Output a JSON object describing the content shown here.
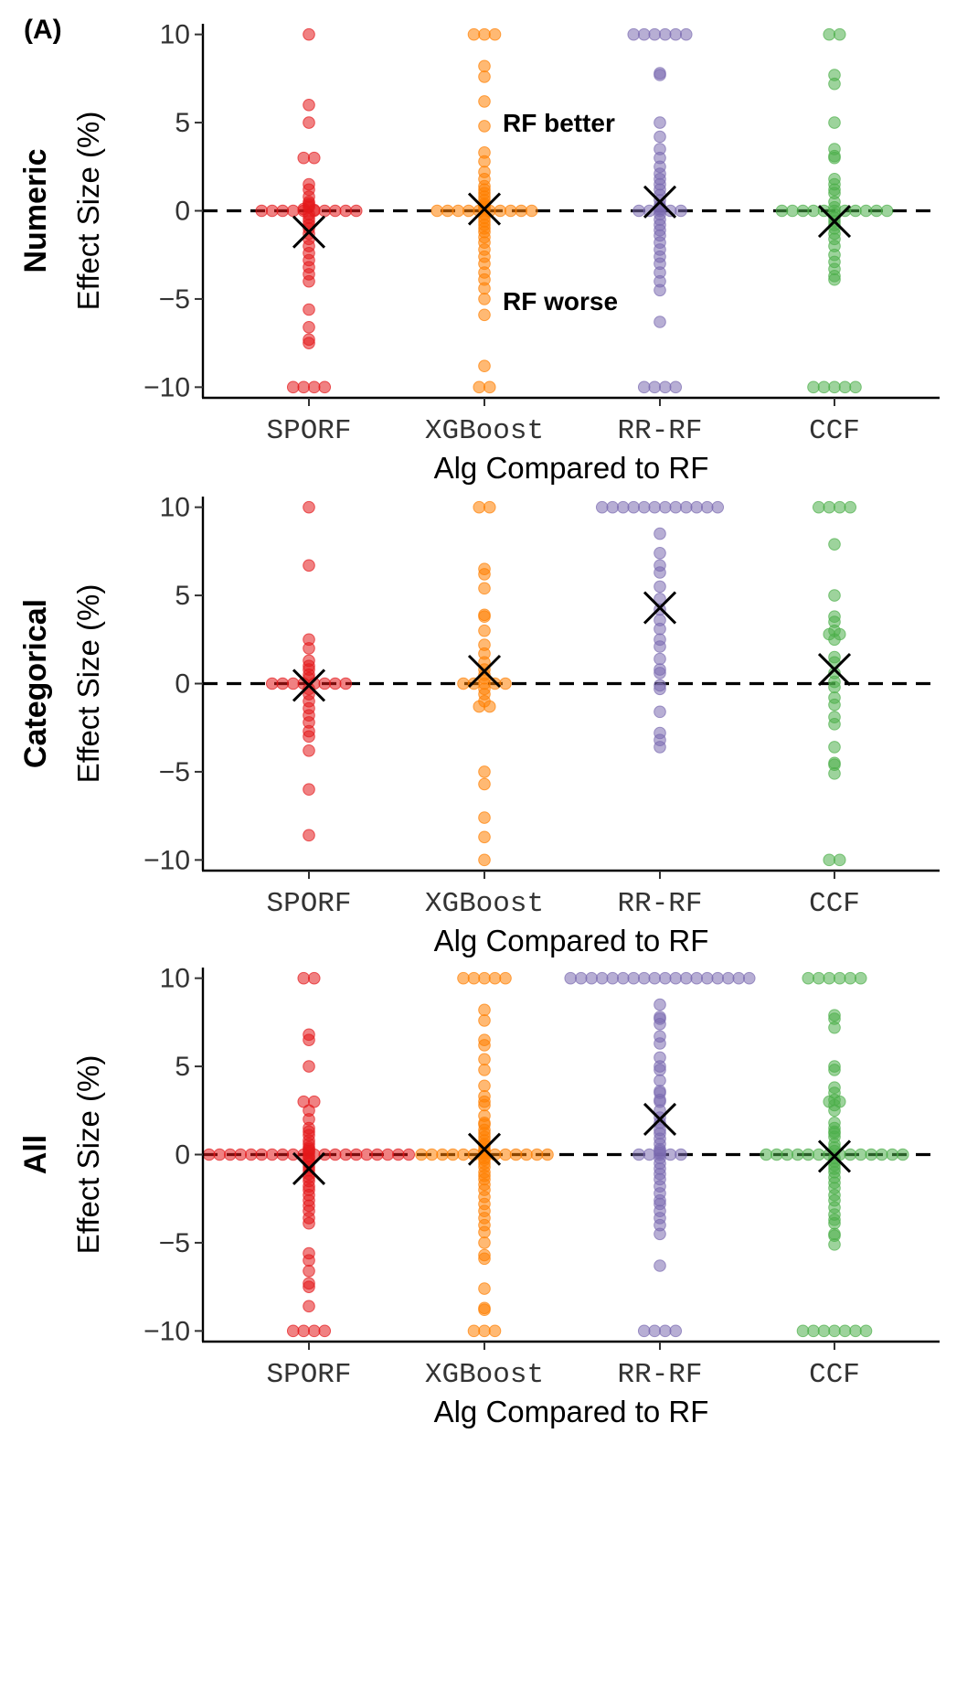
{
  "panel_label": "(A)",
  "colors": {
    "SPORF": "#e41a1c",
    "XGBoost": "#ff7f00",
    "RR-RF": "#7b6bb0",
    "CCF": "#4daf4a",
    "mean_marker": "#000000",
    "reference_line": "#000000"
  },
  "chart_data": [
    {
      "type": "scatter",
      "row_label": "Numeric",
      "ylabel": "Effect Size (%)",
      "xlabel": "Alg Compared to RF",
      "categories": [
        "SPORF",
        "XGBoost",
        "RR-RF",
        "CCF"
      ],
      "ylim": [
        -10.5,
        10.5
      ],
      "yticks": [
        10,
        5,
        0,
        -5,
        -10
      ],
      "ytick_labels": [
        "10",
        "5",
        "0",
        "−5",
        "−10"
      ],
      "reference_line_y": 0,
      "annotations": [
        "RF better",
        "RF worse"
      ],
      "series": [
        {
          "category": "SPORF",
          "mean": -1.2,
          "values": [
            10,
            6,
            5,
            3,
            3,
            1.5,
            1.2,
            0.8,
            0.5,
            0.4,
            0.3,
            0.2,
            0.1,
            0.05,
            0,
            0,
            0,
            0,
            0,
            0,
            0,
            0,
            0,
            0,
            -0.2,
            -0.4,
            -0.6,
            -0.8,
            -1,
            -1.3,
            -1.6,
            -2,
            -2.4,
            -2.8,
            -3.2,
            -3.6,
            -4,
            -5.6,
            -6.6,
            -7.3,
            -7.5,
            -10,
            -10,
            -10,
            -10
          ]
        },
        {
          "category": "XGBoost",
          "mean": 0.1,
          "values": [
            10,
            10,
            10,
            8.2,
            7.6,
            6.2,
            4.8,
            3.3,
            2.8,
            2.2,
            1.8,
            1.4,
            1.2,
            1,
            0.8,
            0.6,
            0.4,
            0.3,
            0.2,
            0.1,
            0,
            0,
            0,
            0,
            0,
            0,
            0,
            0,
            0,
            0,
            -0.2,
            -0.4,
            -0.6,
            -0.8,
            -1,
            -1.2,
            -1.5,
            -1.8,
            -2.2,
            -2.6,
            -3,
            -3.5,
            -3.9,
            -4.4,
            -5,
            -5.9,
            -8.8,
            -10,
            -10
          ]
        },
        {
          "category": "RR-RF",
          "mean": 0.5,
          "values": [
            10,
            10,
            10,
            10,
            10,
            10,
            7.8,
            7.7,
            5,
            4.2,
            3.5,
            3,
            2.5,
            2.1,
            1.8,
            1.5,
            1.2,
            0.9,
            0.6,
            0.3,
            0.2,
            0.1,
            0,
            0,
            0,
            0,
            0,
            -0.2,
            -0.5,
            -0.8,
            -1.1,
            -1.4,
            -1.8,
            -2.2,
            -2.6,
            -3,
            -3.5,
            -4,
            -4.5,
            -6.3,
            -10,
            -10,
            -10,
            -10
          ]
        },
        {
          "category": "CCF",
          "mean": -0.6,
          "values": [
            10,
            10,
            7.7,
            7.2,
            5,
            3.5,
            3.1,
            3,
            1.8,
            1.5,
            1.2,
            1,
            0.5,
            0.2,
            0,
            0,
            0,
            0,
            0,
            0,
            0,
            0,
            0,
            0,
            0,
            -0.2,
            -0.4,
            -0.6,
            -0.8,
            -1,
            -1.3,
            -1.6,
            -2,
            -2.5,
            -2.9,
            -3.3,
            -3.7,
            -3.9,
            -10,
            -10,
            -10,
            -10,
            -10
          ]
        }
      ]
    },
    {
      "type": "scatter",
      "row_label": "Categorical",
      "ylabel": "Effect Size (%)",
      "xlabel": "Alg Compared to RF",
      "categories": [
        "SPORF",
        "XGBoost",
        "RR-RF",
        "CCF"
      ],
      "ylim": [
        -10.5,
        10.5
      ],
      "yticks": [
        10,
        5,
        0,
        -5,
        -10
      ],
      "ytick_labels": [
        "10",
        "5",
        "0",
        "−5",
        "−10"
      ],
      "reference_line_y": 0,
      "series": [
        {
          "category": "SPORF",
          "mean": -0.1,
          "values": [
            10,
            6.7,
            2.5,
            2,
            1.3,
            1,
            0.8,
            0.5,
            0.3,
            0,
            0,
            0,
            0,
            0,
            0,
            0,
            0,
            -0.3,
            -0.6,
            -1,
            -1.4,
            -1.8,
            -2.2,
            -2.7,
            -3,
            -3.8,
            -6,
            -8.6
          ]
        },
        {
          "category": "XGBoost",
          "mean": 0.7,
          "values": [
            10,
            10,
            6.5,
            6.2,
            5.4,
            3.9,
            3.8,
            3,
            2.2,
            1.7,
            1.2,
            0.8,
            0.5,
            0.3,
            0,
            0,
            0,
            0,
            0,
            -0.3,
            -0.6,
            -1,
            -1.3,
            -1.3,
            -5,
            -5.7,
            -7.6,
            -8.7,
            -10
          ]
        },
        {
          "category": "RR-RF",
          "mean": 4.3,
          "values": [
            10,
            10,
            10,
            10,
            10,
            10,
            10,
            10,
            10,
            10,
            10,
            10,
            8.5,
            7.4,
            6.7,
            6.3,
            5.5,
            4.8,
            4.2,
            3.6,
            3.1,
            2.5,
            2.1,
            1.4,
            0.8,
            0.6,
            -0.1,
            -0.3,
            -1.6,
            -2.8,
            -3.2,
            -3.6
          ]
        },
        {
          "category": "CCF",
          "mean": 0.8,
          "values": [
            10,
            10,
            10,
            10,
            7.9,
            5,
            3.8,
            3.5,
            3,
            2.8,
            2.8,
            2.5,
            1.5,
            1.2,
            0.6,
            0.1,
            -0.2,
            -0.8,
            -1.2,
            -1.9,
            -2.3,
            -3.6,
            -4.5,
            -4.6,
            -5.1,
            -10,
            -10
          ]
        }
      ]
    },
    {
      "type": "scatter",
      "row_label": "All",
      "ylabel": "Effect Size (%)",
      "xlabel": "Alg Compared to RF",
      "categories": [
        "SPORF",
        "XGBoost",
        "RR-RF",
        "CCF"
      ],
      "ylim": [
        -10.5,
        10.5
      ],
      "yticks": [
        10,
        5,
        0,
        -5,
        -10
      ],
      "ytick_labels": [
        "10",
        "5",
        "0",
        "−5",
        "−10"
      ],
      "reference_line_y": 0,
      "series": [
        {
          "category": "SPORF",
          "mean": -0.8,
          "values": [
            10,
            10,
            6.8,
            6.5,
            5,
            3,
            3,
            2.5,
            2,
            1.5,
            1.3,
            1.1,
            0.8,
            0.6,
            0.4,
            0.3,
            0.2,
            0.1,
            0,
            0,
            0,
            0,
            0,
            0,
            0,
            0,
            0,
            0,
            0,
            0,
            0,
            0,
            0,
            0,
            0,
            0,
            0,
            0,
            -0.1,
            -0.2,
            -0.4,
            -0.5,
            -0.7,
            -0.9,
            -1.1,
            -1.3,
            -1.5,
            -1.8,
            -2,
            -2.3,
            -2.6,
            -2.9,
            -3.2,
            -3.6,
            -3.9,
            -5.6,
            -6,
            -6.6,
            -7.3,
            -7.5,
            -8.6,
            -10,
            -10,
            -10,
            -10
          ]
        },
        {
          "category": "XGBoost",
          "mean": 0.3,
          "values": [
            10,
            10,
            10,
            10,
            10,
            8.2,
            7.6,
            6.5,
            6.2,
            5.4,
            4.8,
            3.9,
            3.3,
            3,
            2.8,
            2.2,
            1.8,
            1.7,
            1.4,
            1.2,
            1,
            0.8,
            0.6,
            0.5,
            0.3,
            0.2,
            0.1,
            0,
            0,
            0,
            0,
            0,
            0,
            0,
            0,
            0,
            0,
            0,
            0,
            0,
            -0.2,
            -0.3,
            -0.5,
            -0.7,
            -1,
            -1.2,
            -1.4,
            -1.7,
            -2,
            -2.4,
            -2.8,
            -3.2,
            -3.6,
            -4,
            -4.4,
            -5,
            -5.7,
            -5.9,
            -7.6,
            -8.7,
            -8.8,
            -10,
            -10,
            -10
          ]
        },
        {
          "category": "RR-RF",
          "mean": 2.0,
          "values": [
            10,
            10,
            10,
            10,
            10,
            10,
            10,
            10,
            10,
            10,
            10,
            10,
            10,
            10,
            10,
            10,
            10,
            10,
            8.5,
            7.8,
            7.7,
            7.4,
            6.7,
            6.3,
            5.5,
            5,
            4.8,
            4.2,
            3.6,
            3.5,
            3.1,
            3,
            2.5,
            2.1,
            1.8,
            1.4,
            1.2,
            0.9,
            0.6,
            0.3,
            0.2,
            0.1,
            0,
            0,
            0,
            0,
            0,
            -0.2,
            -0.5,
            -0.8,
            -1.1,
            -1.4,
            -1.8,
            -2.2,
            -2.6,
            -2.8,
            -3.2,
            -3.6,
            -4,
            -4.5,
            -6.3,
            -10,
            -10,
            -10,
            -10
          ]
        },
        {
          "category": "CCF",
          "mean": -0.1,
          "values": [
            10,
            10,
            10,
            10,
            10,
            10,
            7.9,
            7.7,
            7.2,
            5,
            4.8,
            3.8,
            3.5,
            3.1,
            3,
            3,
            2.8,
            2.5,
            1.8,
            1.5,
            1.3,
            1.2,
            1,
            0.6,
            0.4,
            0.2,
            0,
            0,
            0,
            0,
            0,
            0,
            0,
            0,
            0,
            0,
            0,
            0,
            0,
            0,
            -0.2,
            -0.4,
            -0.6,
            -0.8,
            -1,
            -1.3,
            -1.6,
            -1.9,
            -2.3,
            -2.6,
            -3,
            -3.4,
            -3.7,
            -3.9,
            -4.5,
            -4.6,
            -5.1,
            -10,
            -10,
            -10,
            -10,
            -10,
            -10,
            -10
          ]
        }
      ]
    }
  ]
}
